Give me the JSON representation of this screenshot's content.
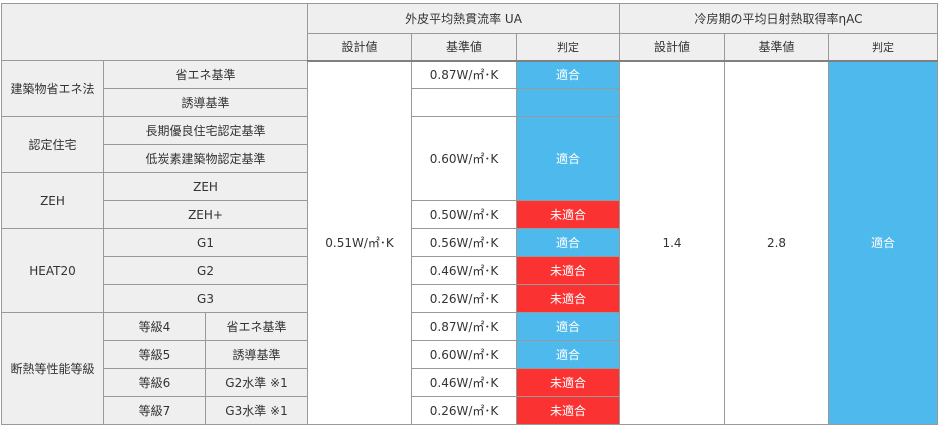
{
  "colors": {
    "ok": "#4db9ec",
    "ng": "#fa3232",
    "header_bg": "#efefef",
    "border": "#999999"
  },
  "header": {
    "ua_title": "外皮平均熱貫流率 UA",
    "eta_title": "冷房期の平均日射熱取得率ηAC",
    "design": "設計値",
    "standard": "基準値",
    "judge": "判定"
  },
  "categories": {
    "kenchiku": "建築物省エネ法",
    "nintei": "認定住宅",
    "zeh": "ZEH",
    "heat20": "HEAT20",
    "dannetsu": "断熱等性能等級"
  },
  "rows": [
    {
      "label": "省エネ基準",
      "ua_std": "0.87W/㎡･K",
      "ua_judge": "適合"
    },
    {
      "label": "誘導基準"
    },
    {
      "label": "長期優良住宅認定基準",
      "ua_std": "0.60W/㎡･K",
      "ua_judge": "適合"
    },
    {
      "label": "低炭素建築物認定基準"
    },
    {
      "label": "ZEH"
    },
    {
      "label": "ZEH+",
      "ua_std": "0.50W/㎡･K",
      "ua_judge": "未適合"
    },
    {
      "label": "G1",
      "ua_std": "0.56W/㎡･K",
      "ua_judge": "適合"
    },
    {
      "label": "G2",
      "ua_std": "0.46W/㎡･K",
      "ua_judge": "未適合"
    },
    {
      "label": "G3",
      "ua_std": "0.26W/㎡･K",
      "ua_judge": "未適合"
    },
    {
      "grade": "等級4",
      "label": "省エネ基準",
      "ua_std": "0.87W/㎡･K",
      "ua_judge": "適合"
    },
    {
      "grade": "等級5",
      "label": "誘導基準",
      "ua_std": "0.60W/㎡･K",
      "ua_judge": "適合"
    },
    {
      "grade": "等級6",
      "label": "G2水準 ※1",
      "ua_std": "0.46W/㎡･K",
      "ua_judge": "未適合"
    },
    {
      "grade": "等級7",
      "label": "G3水準 ※1",
      "ua_std": "0.26W/㎡･K",
      "ua_judge": "未適合"
    }
  ],
  "ua_design": "0.51W/㎡･K",
  "eta": {
    "design": "1.4",
    "standard": "2.8",
    "judge": "適合"
  }
}
